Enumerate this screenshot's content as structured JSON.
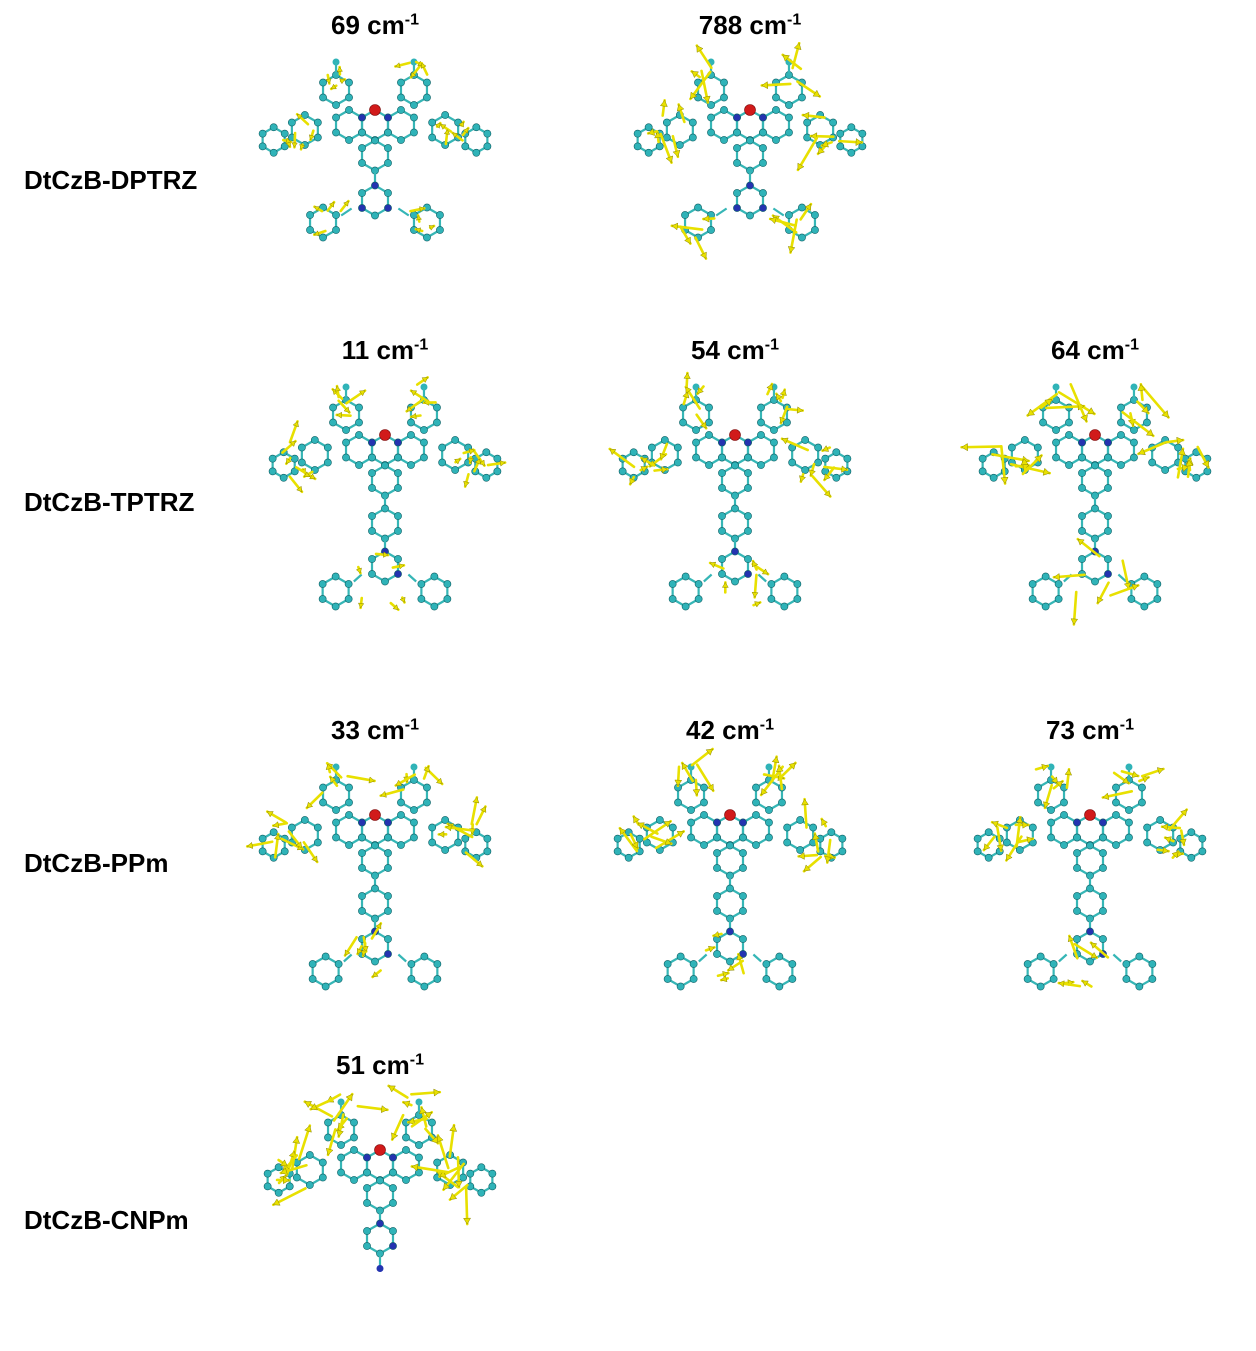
{
  "rows": [
    {
      "label": "DtCzB-DPTRZ",
      "modes": [
        {
          "value": "69",
          "unit": "cm",
          "exponent": "-1"
        },
        {
          "value": "788",
          "unit": "cm",
          "exponent": "-1"
        }
      ]
    },
    {
      "label": "DtCzB-TPTRZ",
      "modes": [
        {
          "value": "11",
          "unit": "cm",
          "exponent": "-1"
        },
        {
          "value": "54",
          "unit": "cm",
          "exponent": "-1"
        },
        {
          "value": "64",
          "unit": "cm",
          "exponent": "-1"
        }
      ]
    },
    {
      "label": "DtCzB-PPm",
      "modes": [
        {
          "value": "33",
          "unit": "cm",
          "exponent": "-1"
        },
        {
          "value": "42",
          "unit": "cm",
          "exponent": "-1"
        },
        {
          "value": "73",
          "unit": "cm",
          "exponent": "-1"
        }
      ]
    },
    {
      "label": "DtCzB-CNPm",
      "modes": [
        {
          "value": "51",
          "unit": "cm",
          "exponent": "-1"
        }
      ]
    }
  ],
  "colors": {
    "carbon": "#2fb3b8",
    "bond": "#36b6b6",
    "nitrogen": "#2433b0",
    "boron": "#d11a1a",
    "arrow": "#e8e000",
    "arrow_edge": "#8a8500"
  }
}
